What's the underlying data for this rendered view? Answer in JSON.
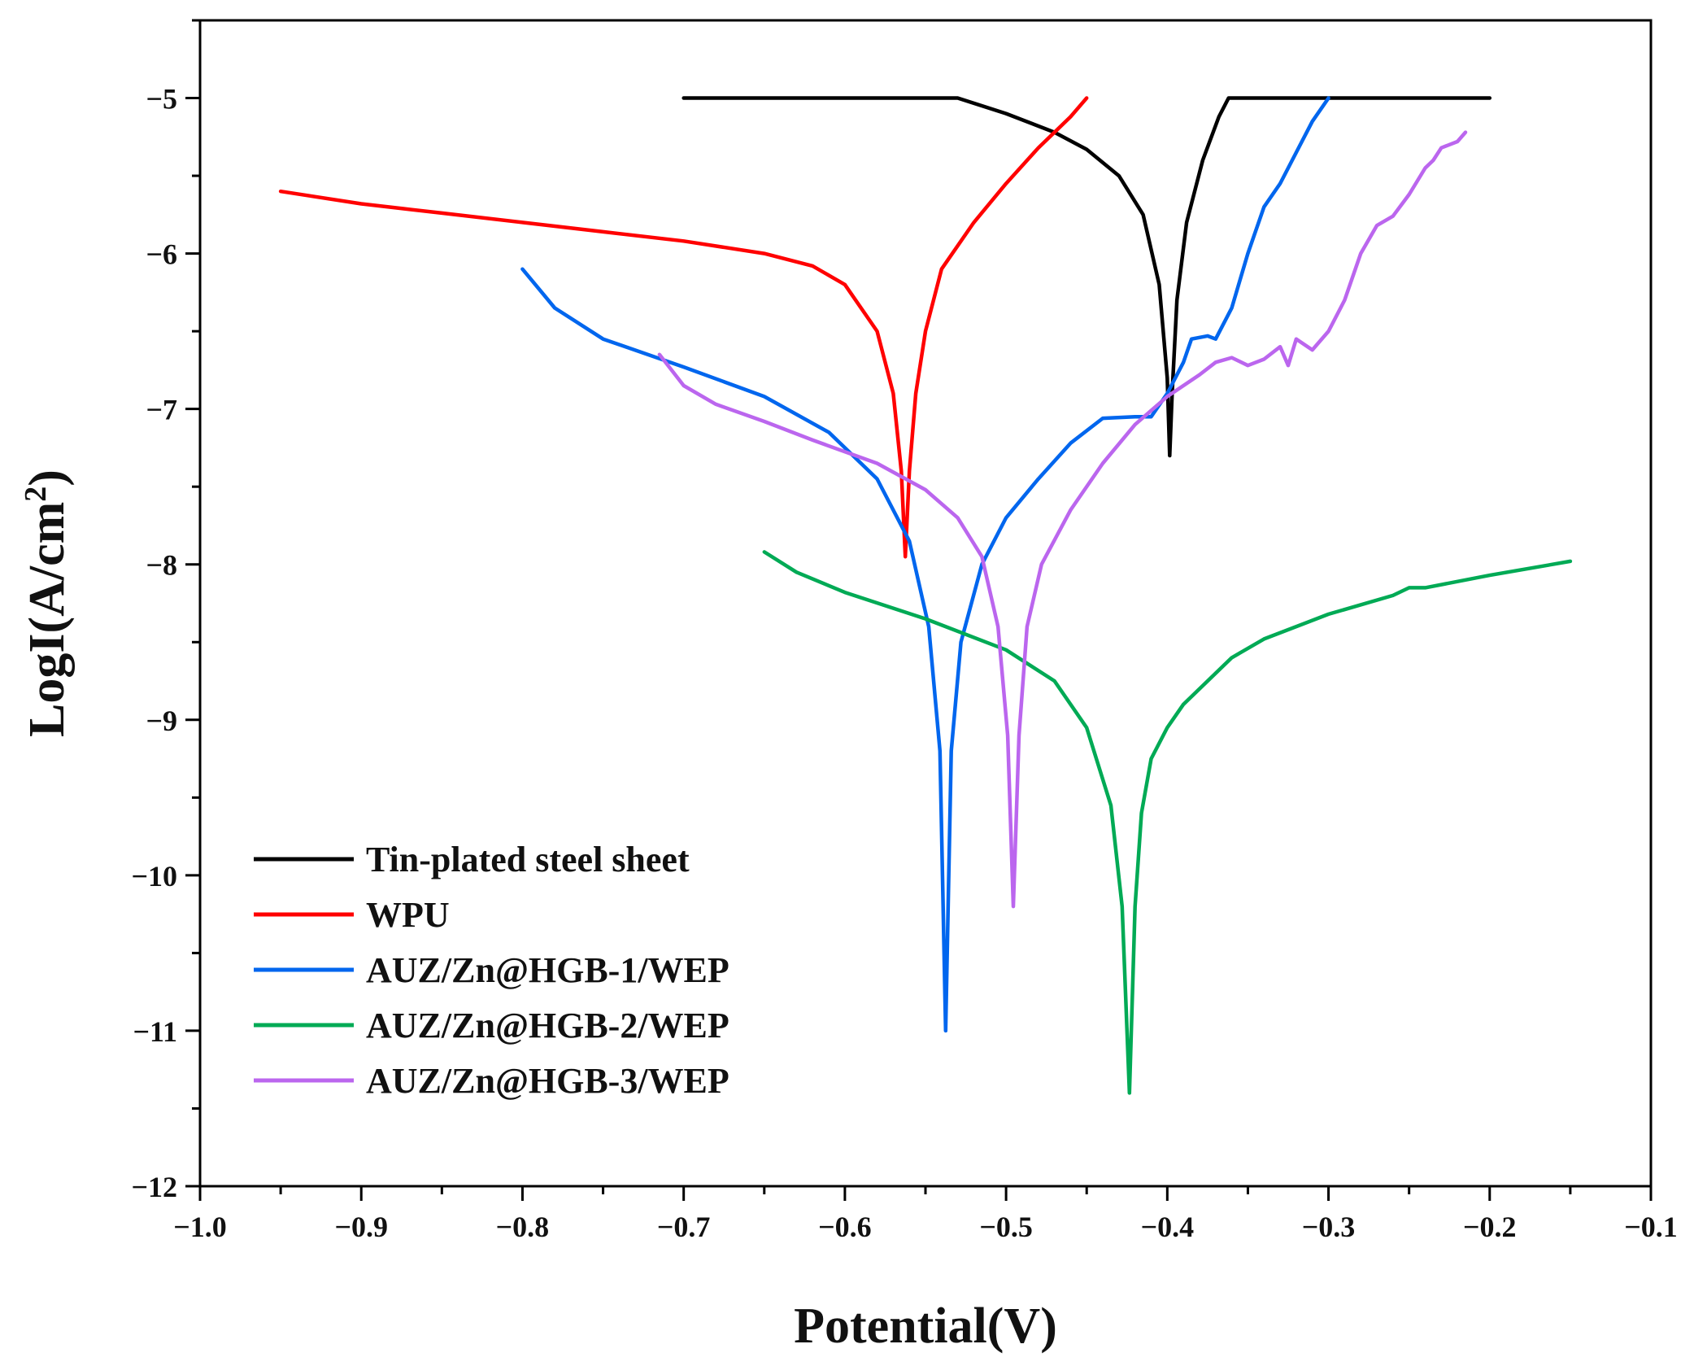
{
  "chart_data": {
    "type": "line",
    "title": "",
    "xlabel": "Potential(V)",
    "ylabel": "LogI(A/cm",
    "ylabel_sup": "2",
    "ylabel_close": ")",
    "xlim": [
      -1.0,
      -0.1
    ],
    "ylim": [
      -12,
      -4.5
    ],
    "xticks": [
      -1.0,
      -0.9,
      -0.8,
      -0.7,
      -0.6,
      -0.5,
      -0.4,
      -0.3,
      -0.2,
      -0.1
    ],
    "xtick_labels": [
      "−1.0",
      "−0.9",
      "−0.8",
      "−0.7",
      "−0.6",
      "−0.5",
      "−0.4",
      "−0.3",
      "−0.2",
      "−0.1"
    ],
    "yticks": [
      -5,
      -6,
      -7,
      -8,
      -9,
      -10,
      -11,
      -12
    ],
    "ytick_labels": [
      "−5",
      "−6",
      "−7",
      "−8",
      "−9",
      "−10",
      "−11",
      "−12"
    ],
    "legend_position": "lower-left",
    "grid": false,
    "series": [
      {
        "name": "Tin-plated steel sheet",
        "color": "#000000",
        "points": [
          [
            -0.7,
            -5.0
          ],
          [
            -0.53,
            -5.0
          ],
          [
            -0.5,
            -5.1
          ],
          [
            -0.47,
            -5.22
          ],
          [
            -0.45,
            -5.33
          ],
          [
            -0.43,
            -5.5
          ],
          [
            -0.415,
            -5.75
          ],
          [
            -0.405,
            -6.2
          ],
          [
            -0.4,
            -6.8
          ],
          [
            -0.3985,
            -7.3
          ],
          [
            -0.397,
            -6.9
          ],
          [
            -0.394,
            -6.3
          ],
          [
            -0.388,
            -5.8
          ],
          [
            -0.378,
            -5.4
          ],
          [
            -0.368,
            -5.12
          ],
          [
            -0.362,
            -5.0
          ],
          [
            -0.2,
            -5.0
          ]
        ]
      },
      {
        "name": "WPU",
        "color": "#ff0000",
        "points": [
          [
            -0.95,
            -5.6
          ],
          [
            -0.9,
            -5.68
          ],
          [
            -0.85,
            -5.74
          ],
          [
            -0.8,
            -5.8
          ],
          [
            -0.75,
            -5.86
          ],
          [
            -0.7,
            -5.92
          ],
          [
            -0.65,
            -6.0
          ],
          [
            -0.62,
            -6.08
          ],
          [
            -0.6,
            -6.2
          ],
          [
            -0.58,
            -6.5
          ],
          [
            -0.57,
            -6.9
          ],
          [
            -0.565,
            -7.4
          ],
          [
            -0.5625,
            -7.95
          ],
          [
            -0.56,
            -7.4
          ],
          [
            -0.556,
            -6.9
          ],
          [
            -0.55,
            -6.5
          ],
          [
            -0.54,
            -6.1
          ],
          [
            -0.52,
            -5.8
          ],
          [
            -0.5,
            -5.55
          ],
          [
            -0.48,
            -5.32
          ],
          [
            -0.46,
            -5.12
          ],
          [
            -0.45,
            -5.0
          ]
        ]
      },
      {
        "name": "AUZ/Zn@HGB-1/WEP",
        "color": "#0066ee",
        "points": [
          [
            -0.8,
            -6.1
          ],
          [
            -0.78,
            -6.35
          ],
          [
            -0.75,
            -6.55
          ],
          [
            -0.7,
            -6.73
          ],
          [
            -0.65,
            -6.92
          ],
          [
            -0.61,
            -7.15
          ],
          [
            -0.58,
            -7.45
          ],
          [
            -0.56,
            -7.85
          ],
          [
            -0.548,
            -8.4
          ],
          [
            -0.541,
            -9.2
          ],
          [
            -0.5375,
            -11.0
          ],
          [
            -0.534,
            -9.2
          ],
          [
            -0.528,
            -8.5
          ],
          [
            -0.515,
            -8.0
          ],
          [
            -0.5,
            -7.7
          ],
          [
            -0.48,
            -7.45
          ],
          [
            -0.46,
            -7.22
          ],
          [
            -0.44,
            -7.06
          ],
          [
            -0.42,
            -7.05
          ],
          [
            -0.41,
            -7.05
          ],
          [
            -0.4,
            -6.9
          ],
          [
            -0.39,
            -6.7
          ],
          [
            -0.385,
            -6.55
          ],
          [
            -0.375,
            -6.53
          ],
          [
            -0.37,
            -6.55
          ],
          [
            -0.36,
            -6.35
          ],
          [
            -0.35,
            -6.0
          ],
          [
            -0.34,
            -5.7
          ],
          [
            -0.33,
            -5.55
          ],
          [
            -0.32,
            -5.35
          ],
          [
            -0.31,
            -5.15
          ],
          [
            -0.3,
            -5.0
          ]
        ]
      },
      {
        "name": "AUZ/Zn@HGB-2/WEP",
        "color": "#00aa55",
        "points": [
          [
            -0.65,
            -7.92
          ],
          [
            -0.63,
            -8.05
          ],
          [
            -0.6,
            -8.18
          ],
          [
            -0.55,
            -8.35
          ],
          [
            -0.5,
            -8.55
          ],
          [
            -0.47,
            -8.75
          ],
          [
            -0.45,
            -9.05
          ],
          [
            -0.435,
            -9.55
          ],
          [
            -0.428,
            -10.2
          ],
          [
            -0.4235,
            -11.4
          ],
          [
            -0.42,
            -10.2
          ],
          [
            -0.416,
            -9.6
          ],
          [
            -0.41,
            -9.25
          ],
          [
            -0.4,
            -9.05
          ],
          [
            -0.39,
            -8.9
          ],
          [
            -0.37,
            -8.7
          ],
          [
            -0.36,
            -8.6
          ],
          [
            -0.34,
            -8.48
          ],
          [
            -0.3,
            -8.32
          ],
          [
            -0.26,
            -8.2
          ],
          [
            -0.25,
            -8.15
          ],
          [
            -0.24,
            -8.15
          ],
          [
            -0.2,
            -8.07
          ],
          [
            -0.15,
            -7.98
          ]
        ]
      },
      {
        "name": "AUZ/Zn@HGB-3/WEP",
        "color": "#bb66ee",
        "points": [
          [
            -0.715,
            -6.65
          ],
          [
            -0.7,
            -6.85
          ],
          [
            -0.68,
            -6.97
          ],
          [
            -0.65,
            -7.08
          ],
          [
            -0.62,
            -7.2
          ],
          [
            -0.58,
            -7.35
          ],
          [
            -0.55,
            -7.52
          ],
          [
            -0.53,
            -7.7
          ],
          [
            -0.515,
            -7.95
          ],
          [
            -0.505,
            -8.4
          ],
          [
            -0.499,
            -9.1
          ],
          [
            -0.4955,
            -10.2
          ],
          [
            -0.492,
            -9.1
          ],
          [
            -0.487,
            -8.4
          ],
          [
            -0.478,
            -8.0
          ],
          [
            -0.46,
            -7.65
          ],
          [
            -0.44,
            -7.35
          ],
          [
            -0.42,
            -7.1
          ],
          [
            -0.4,
            -6.92
          ],
          [
            -0.38,
            -6.78
          ],
          [
            -0.37,
            -6.7
          ],
          [
            -0.36,
            -6.67
          ],
          [
            -0.35,
            -6.72
          ],
          [
            -0.34,
            -6.68
          ],
          [
            -0.33,
            -6.6
          ],
          [
            -0.325,
            -6.72
          ],
          [
            -0.32,
            -6.55
          ],
          [
            -0.31,
            -6.62
          ],
          [
            -0.3,
            -6.5
          ],
          [
            -0.29,
            -6.3
          ],
          [
            -0.28,
            -6.0
          ],
          [
            -0.27,
            -5.82
          ],
          [
            -0.26,
            -5.76
          ],
          [
            -0.25,
            -5.62
          ],
          [
            -0.24,
            -5.45
          ],
          [
            -0.235,
            -5.4
          ],
          [
            -0.23,
            -5.32
          ],
          [
            -0.22,
            -5.28
          ],
          [
            -0.215,
            -5.22
          ]
        ]
      }
    ]
  }
}
